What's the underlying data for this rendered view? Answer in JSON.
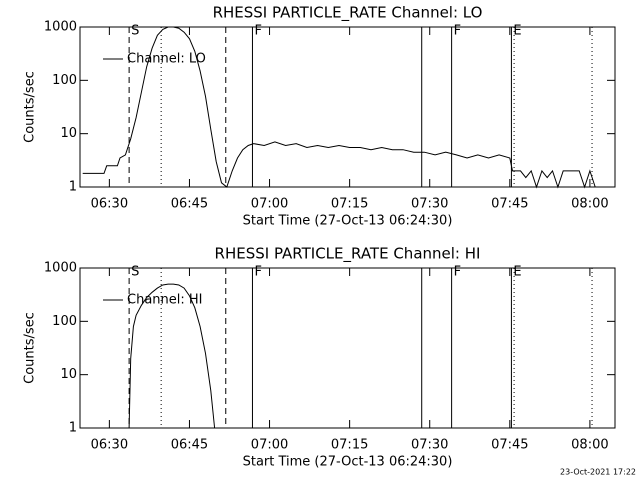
{
  "chart_data": [
    {
      "type": "line",
      "title": "RHESSI PARTICLE_RATE Channel: LO",
      "xlabel": "Start Time (27-Oct-13 06:24:30)",
      "ylabel": "Counts/sec",
      "log_y": true,
      "color": "#000000",
      "xlim": [
        384.5,
        484.7
      ],
      "ylim": [
        1,
        1000
      ],
      "xticks": [
        {
          "value": 390,
          "label": "06:30"
        },
        {
          "value": 405,
          "label": "06:45"
        },
        {
          "value": 420,
          "label": "07:00"
        },
        {
          "value": 435,
          "label": "07:15"
        },
        {
          "value": 450,
          "label": "07:30"
        },
        {
          "value": 465,
          "label": "07:45"
        },
        {
          "value": 480,
          "label": "08:00"
        }
      ],
      "yticks": [
        1,
        10,
        100,
        1000
      ],
      "markers": [
        {
          "x": 393.7,
          "style": "dashed",
          "label": "S"
        },
        {
          "x": 399.7,
          "style": "dotted"
        },
        {
          "x": 411.8,
          "style": "dashed"
        },
        {
          "x": 416.8,
          "style": "solid",
          "label": "F"
        },
        {
          "x": 448.5,
          "style": "solid"
        },
        {
          "x": 454.1,
          "style": "solid",
          "label": "F"
        },
        {
          "x": 465.3,
          "style": "solid",
          "label": "E"
        },
        {
          "x": 465.8,
          "style": "dotted"
        },
        {
          "x": 480.4,
          "style": "dotted"
        }
      ],
      "series": [
        {
          "name": "Channel: LO",
          "x": [
            385,
            389,
            389.5,
            391.5,
            392,
            393,
            394,
            395,
            396,
            397,
            398,
            399,
            400,
            401,
            402,
            403,
            404,
            405,
            406,
            407,
            408,
            409,
            410,
            411,
            412,
            413,
            414,
            415,
            416,
            417,
            419,
            421,
            423,
            425,
            427,
            429,
            431,
            433,
            435,
            437,
            439,
            441,
            443,
            445,
            447,
            449,
            451,
            453,
            455,
            457,
            459,
            461,
            463,
            465,
            465.5,
            467,
            468,
            469,
            470,
            471,
            472,
            473,
            474,
            475,
            478,
            479,
            480,
            481
          ],
          "values": [
            1.8,
            1.8,
            2.5,
            2.5,
            3.5,
            4,
            8,
            20,
            60,
            180,
            400,
            700,
            900,
            1000,
            1000,
            950,
            800,
            600,
            350,
            150,
            50,
            12,
            3,
            1.2,
            1,
            2,
            3.5,
            5,
            6,
            6.5,
            6,
            7,
            6,
            6.5,
            5.5,
            6,
            5.5,
            6,
            5.5,
            5.5,
            5,
            5.5,
            5,
            5,
            4.5,
            4.5,
            4,
            4.5,
            4,
            3.5,
            4,
            3.5,
            4,
            3.5,
            2,
            2,
            1.5,
            2,
            1,
            2,
            1.5,
            2,
            1,
            2,
            2,
            1,
            2,
            1
          ]
        }
      ]
    },
    {
      "type": "line",
      "title": "RHESSI PARTICLE_RATE Channel: HI",
      "xlabel": "Start Time (27-Oct-13 06:24:30)",
      "ylabel": "Counts/sec",
      "log_y": true,
      "color": "#000000",
      "xlim": [
        384.5,
        484.7
      ],
      "ylim": [
        1,
        1000
      ],
      "xticks": [
        {
          "value": 390,
          "label": "06:30"
        },
        {
          "value": 405,
          "label": "06:45"
        },
        {
          "value": 420,
          "label": "07:00"
        },
        {
          "value": 435,
          "label": "07:15"
        },
        {
          "value": 450,
          "label": "07:30"
        },
        {
          "value": 465,
          "label": "07:45"
        },
        {
          "value": 480,
          "label": "08:00"
        }
      ],
      "yticks": [
        1,
        10,
        100,
        1000
      ],
      "markers": [
        {
          "x": 393.7,
          "style": "dashed",
          "label": "S"
        },
        {
          "x": 399.7,
          "style": "dotted"
        },
        {
          "x": 411.8,
          "style": "dashed"
        },
        {
          "x": 416.8,
          "style": "solid",
          "label": "F"
        },
        {
          "x": 448.5,
          "style": "solid"
        },
        {
          "x": 454.1,
          "style": "solid",
          "label": "F"
        },
        {
          "x": 465.3,
          "style": "solid",
          "label": "E"
        },
        {
          "x": 465.8,
          "style": "dotted"
        },
        {
          "x": 480.4,
          "style": "dotted"
        }
      ],
      "series": [
        {
          "name": "Channel: HI",
          "x": [
            393.7,
            394,
            394.5,
            395,
            396,
            397,
            398,
            399,
            400,
            401,
            402,
            403,
            404,
            405,
            406,
            407,
            408,
            409,
            409.7
          ],
          "values": [
            1,
            20,
            80,
            130,
            200,
            280,
            350,
            420,
            480,
            500,
            500,
            480,
            420,
            300,
            180,
            80,
            25,
            5,
            1
          ]
        }
      ]
    }
  ],
  "footer": "23-Oct-2021 17:22"
}
